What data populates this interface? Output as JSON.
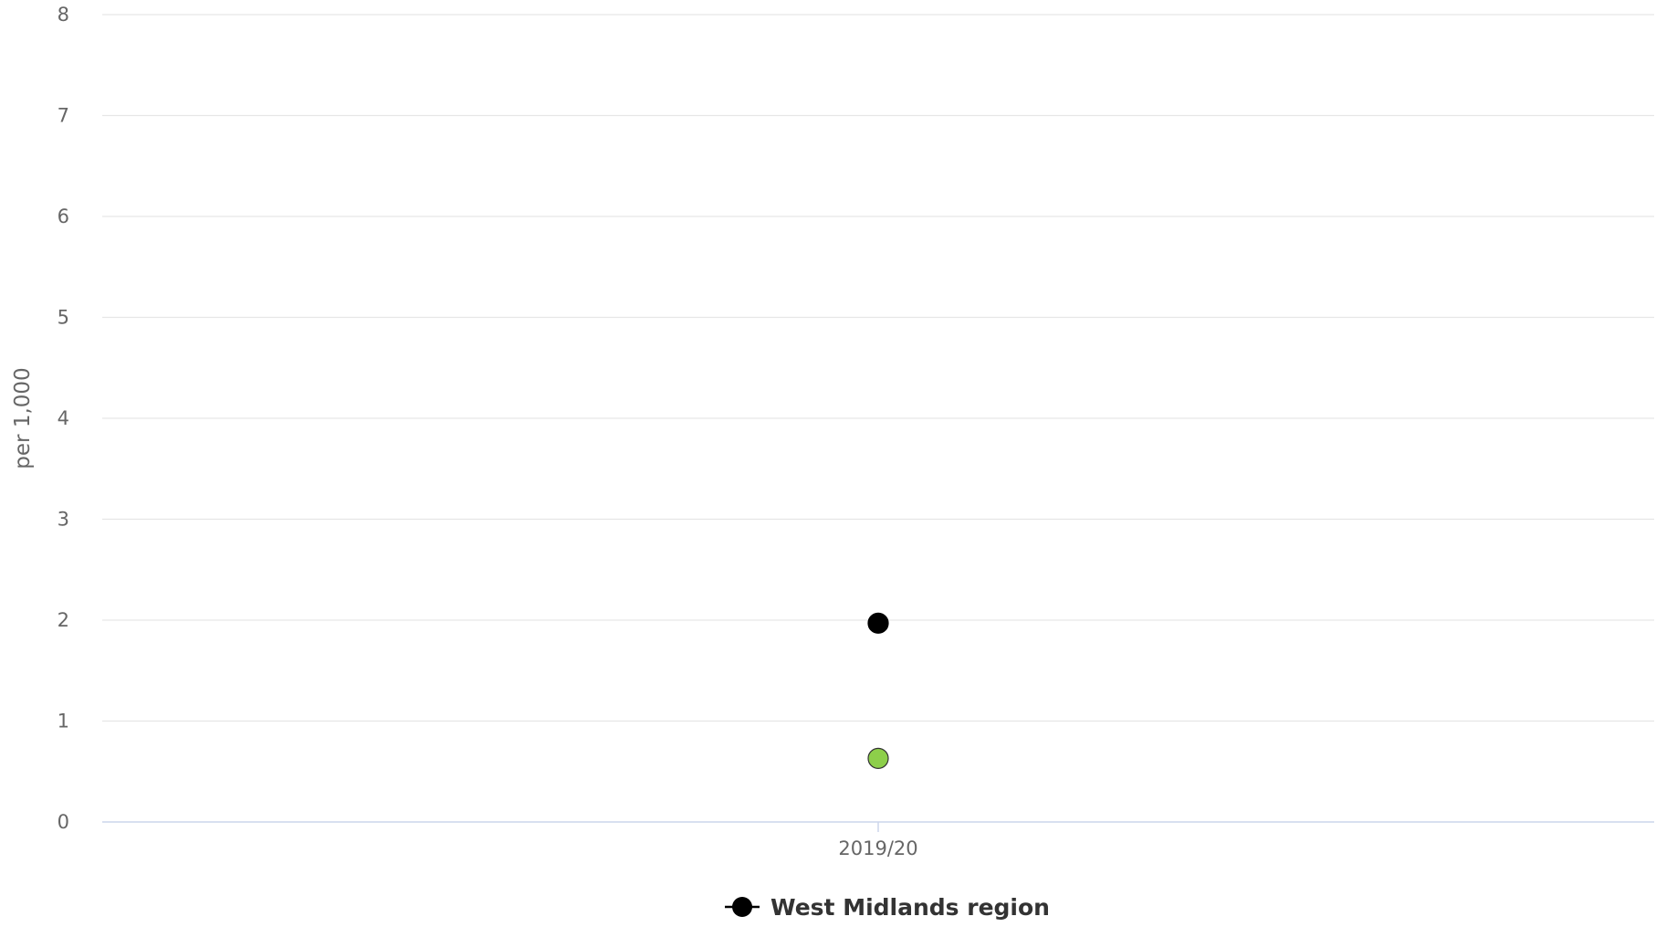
{
  "chart_data": {
    "type": "scatter",
    "title": "",
    "xlabel": "",
    "ylabel": "per 1,000",
    "categories": [
      "2019/20"
    ],
    "ylim": [
      0,
      8
    ],
    "yticks": [
      0,
      1,
      2,
      3,
      4,
      5,
      6,
      7,
      8
    ],
    "grid": true,
    "legend_position": "bottom-center",
    "series": [
      {
        "name": "West Midlands region",
        "color": "#000000",
        "values": [
          1.97
        ],
        "in_legend": true
      },
      {
        "color": "#8dcf4a",
        "values": [
          0.63
        ],
        "in_legend": false
      }
    ]
  }
}
